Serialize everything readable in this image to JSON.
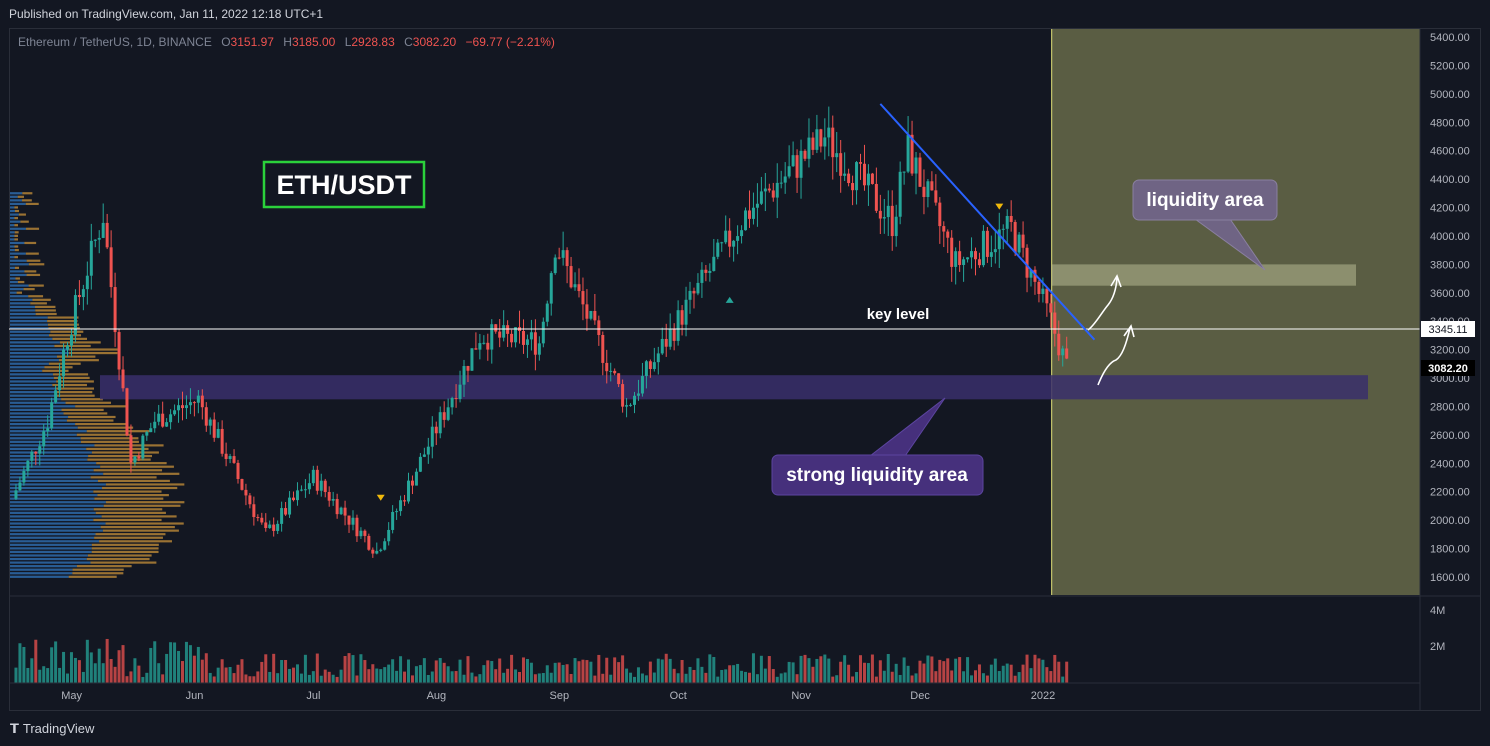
{
  "header": {
    "published": "Published on TradingView.com, Jan 11, 2022 12:18 UTC+1"
  },
  "legend": {
    "symbol": "Ethereum / TetherUS, 1D, BINANCE",
    "o_label": "O",
    "o_value": "3151.97",
    "h_label": "H",
    "h_value": "3185.00",
    "l_label": "L",
    "l_value": "2928.83",
    "c_label": "C",
    "c_value": "3082.20",
    "change": "−69.77 (−2.21%)"
  },
  "annotations": {
    "title_box": "ETH/USDT",
    "liquidity_area": "liquidity area",
    "strong_liquidity_area": "strong liquidity area",
    "key_level": "key level",
    "key_level_price": "3345.11",
    "last_price": "3082.20"
  },
  "footer": {
    "brand": "TradingView"
  },
  "colors": {
    "background": "#131722",
    "up": "#26a69a",
    "down": "#ef5350",
    "trendline": "#2962ff",
    "future_zone": "#5a5d43",
    "strong_zone": "#3a2f6b",
    "label_purple": "#46307c",
    "label_grey": "#6f6484",
    "volume_profile_blue": "#2f6fb3",
    "volume_profile_orange": "#c8913a",
    "title_box_border": "#2bd13b"
  },
  "chart_data": {
    "type": "candlestick",
    "title": "Ethereum / TetherUS, 1D, BINANCE",
    "y_axis": {
      "ylim": [
        1550,
        5450
      ],
      "ticks": [
        "5400.00",
        "5200.00",
        "5000.00",
        "4800.00",
        "4600.00",
        "4400.00",
        "4200.00",
        "4000.00",
        "3800.00",
        "3600.00",
        "3400.00",
        "3200.00",
        "3000.00",
        "2800.00",
        "2600.00",
        "2400.00",
        "2200.00",
        "2000.00",
        "1800.00",
        "1600.00"
      ]
    },
    "x_axis": {
      "ticks": [
        "May",
        "Jun",
        "Jul",
        "Aug",
        "Sep",
        "Oct",
        "Nov",
        "Dec",
        "2022"
      ]
    },
    "volume_axis": {
      "ticks": [
        "4M",
        "2M"
      ]
    },
    "price_path": [
      {
        "date": "2021-04-19",
        "close": 2150
      },
      {
        "date": "2021-04-28",
        "close": 2700
      },
      {
        "date": "2021-05-03",
        "close": 3300
      },
      {
        "date": "2021-05-12",
        "close": 4150
      },
      {
        "date": "2021-05-19",
        "close": 2400
      },
      {
        "date": "2021-05-25",
        "close": 2700
      },
      {
        "date": "2021-06-05",
        "close": 2850
      },
      {
        "date": "2021-06-22",
        "close": 1900
      },
      {
        "date": "2021-07-04",
        "close": 2300
      },
      {
        "date": "2021-07-20",
        "close": 1780
      },
      {
        "date": "2021-08-05",
        "close": 2700
      },
      {
        "date": "2021-08-15",
        "close": 3300
      },
      {
        "date": "2021-08-30",
        "close": 3250
      },
      {
        "date": "2021-09-03",
        "close": 3950
      },
      {
        "date": "2021-09-21",
        "close": 2800
      },
      {
        "date": "2021-10-05",
        "close": 3450
      },
      {
        "date": "2021-10-21",
        "close": 4150
      },
      {
        "date": "2021-11-10",
        "close": 4700
      },
      {
        "date": "2021-11-27",
        "close": 4100
      },
      {
        "date": "2021-12-01",
        "close": 4600
      },
      {
        "date": "2021-12-13",
        "close": 3800
      },
      {
        "date": "2021-12-27",
        "close": 4050
      },
      {
        "date": "2022-01-06",
        "close": 3400
      },
      {
        "date": "2022-01-10",
        "close": 3082.2
      }
    ],
    "zones": [
      {
        "name": "strong liquidity area",
        "from": 2850,
        "to": 3020
      },
      {
        "name": "liquidity area",
        "from": 3650,
        "to": 3800
      }
    ],
    "horizontal_lines": [
      {
        "name": "key level",
        "price": 3345.11
      }
    ],
    "trendline": {
      "from": {
        "date": "2021-11-24",
        "price": 4930
      },
      "to": {
        "date": "2022-01-17",
        "price": 3270
      }
    }
  }
}
